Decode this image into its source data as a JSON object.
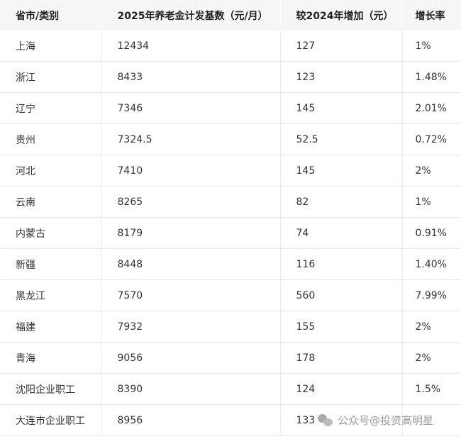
{
  "headers": [
    "省市/类别",
    "2025年养老金计发基数（元/月）",
    "较2024年增加（元）",
    "增长率"
  ],
  "rows": [
    [
      "上海",
      "12434",
      "127",
      "1%"
    ],
    [
      "浙江",
      "8433",
      "123",
      "1.48%"
    ],
    [
      "辽宁",
      "7346",
      "145",
      "2.01%"
    ],
    [
      "贵州",
      "7324.5",
      "52.5",
      "0.72%"
    ],
    [
      "河北",
      "7410",
      "145",
      "2%"
    ],
    [
      "云南",
      "8265",
      "82",
      "1%"
    ],
    [
      "内蒙古",
      "8179",
      "74",
      "0.91%"
    ],
    [
      "新疆",
      "8448",
      "116",
      "1.40%"
    ],
    [
      "黑龙江",
      "7570",
      "560",
      "7.99%"
    ],
    [
      "福建",
      "7932",
      "155",
      "2%"
    ],
    [
      "青海",
      "9056",
      "178",
      "2%"
    ],
    [
      "沈阳企业职工",
      "8390",
      "124",
      "1.5%"
    ],
    [
      "大连市企业职工",
      "8956",
      "133",
      ""
    ]
  ],
  "watermark": {
    "icon": "wechat-icon",
    "text": "公众号@投资高明星"
  }
}
